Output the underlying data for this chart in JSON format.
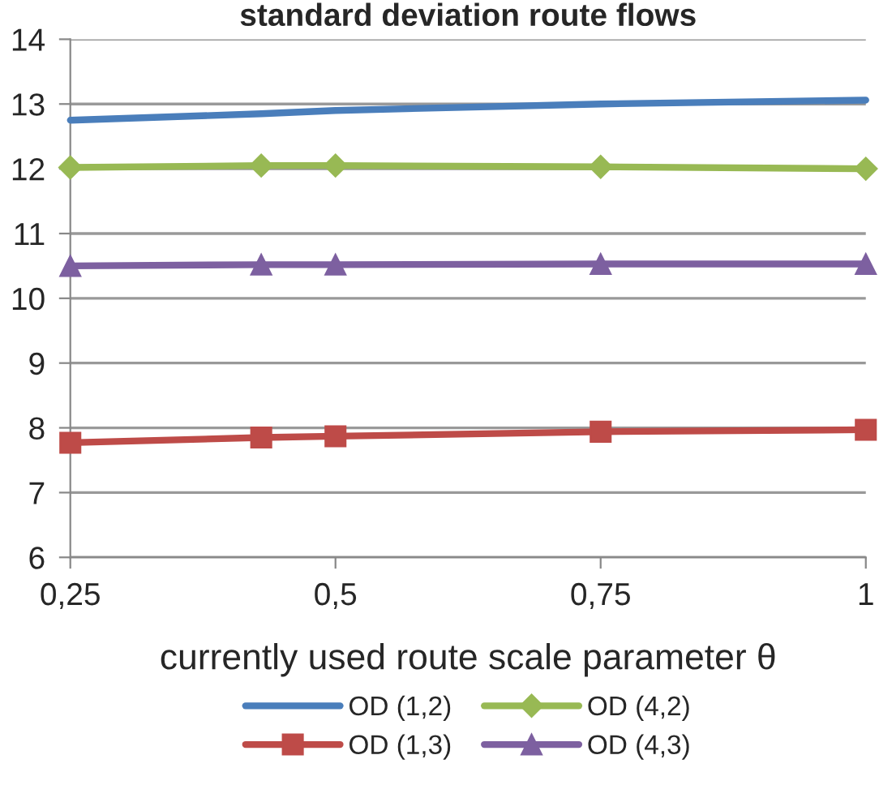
{
  "chart_data": {
    "type": "line",
    "title": "standard deviation route flows",
    "xlabel": "currently used route scale parameter θ",
    "x": [
      0.25,
      0.43,
      0.5,
      0.75,
      1
    ],
    "series": [
      {
        "name": "OD (1,2)",
        "color": "#4a7ebb",
        "marker": "none",
        "values": [
          12.75,
          12.85,
          12.9,
          13.0,
          13.06
        ]
      },
      {
        "name": "OD (1,3)",
        "color": "#be4b48",
        "marker": "square",
        "values": [
          7.77,
          7.85,
          7.87,
          7.94,
          7.97
        ]
      },
      {
        "name": "OD (4,2)",
        "color": "#98b954",
        "marker": "diamond",
        "values": [
          12.02,
          12.05,
          12.05,
          12.03,
          12.0
        ]
      },
      {
        "name": "OD (4,3)",
        "color": "#7d60a0",
        "marker": "triangle",
        "values": [
          10.5,
          10.52,
          10.52,
          10.53,
          10.53
        ]
      }
    ],
    "xlim": [
      0.25,
      1
    ],
    "xticks": [
      {
        "value": 0.25,
        "label": "0,25"
      },
      {
        "value": 0.5,
        "label": "0,5"
      },
      {
        "value": 0.75,
        "label": "0,75"
      },
      1
    ],
    "ylim": [
      6,
      14
    ],
    "yticks": [
      6,
      7,
      8,
      9,
      10,
      11,
      12,
      13,
      14
    ],
    "grid": "y",
    "legend": "bottom",
    "line_style": "solid"
  }
}
